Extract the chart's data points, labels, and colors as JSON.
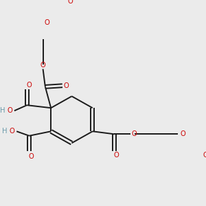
{
  "bg_color": "#ebebeb",
  "bond_color": "#1a1a1a",
  "oxygen_color": "#cc0000",
  "hydrogen_color": "#6a9aaa",
  "bond_lw": 1.4,
  "font_size": 7.2,
  "figsize": [
    3.0,
    3.0
  ],
  "dpi": 100,
  "xlim": [
    0,
    300
  ],
  "ylim": [
    0,
    300
  ]
}
